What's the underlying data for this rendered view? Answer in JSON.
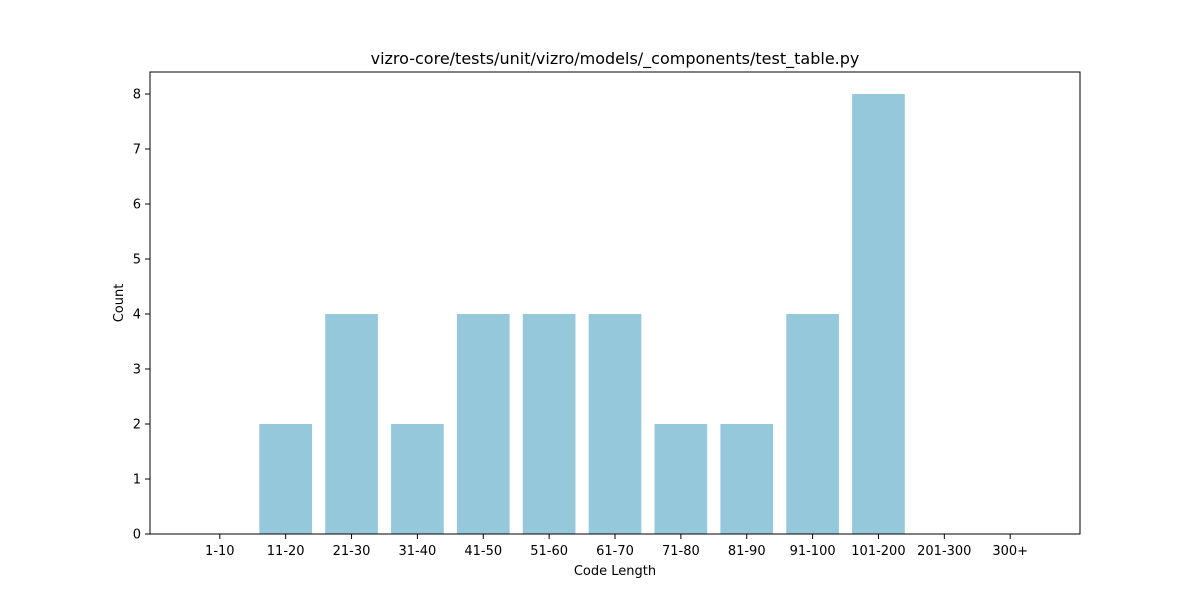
{
  "chart_data": {
    "type": "bar",
    "title": "vizro-core/tests/unit/vizro/models/_components/test_table.py",
    "xlabel": "Code Length",
    "ylabel": "Count",
    "categories": [
      "1-10",
      "11-20",
      "21-30",
      "31-40",
      "41-50",
      "51-60",
      "61-70",
      "71-80",
      "81-90",
      "91-100",
      "101-200",
      "201-300",
      "300+"
    ],
    "values": [
      0,
      2,
      4,
      2,
      4,
      4,
      4,
      2,
      2,
      4,
      8,
      0,
      0
    ],
    "ylim": [
      0,
      8.4
    ],
    "yticks": [
      0,
      1,
      2,
      3,
      4,
      5,
      6,
      7,
      8
    ],
    "bar_color": "#96c8dc",
    "grid": false,
    "legend": false
  }
}
